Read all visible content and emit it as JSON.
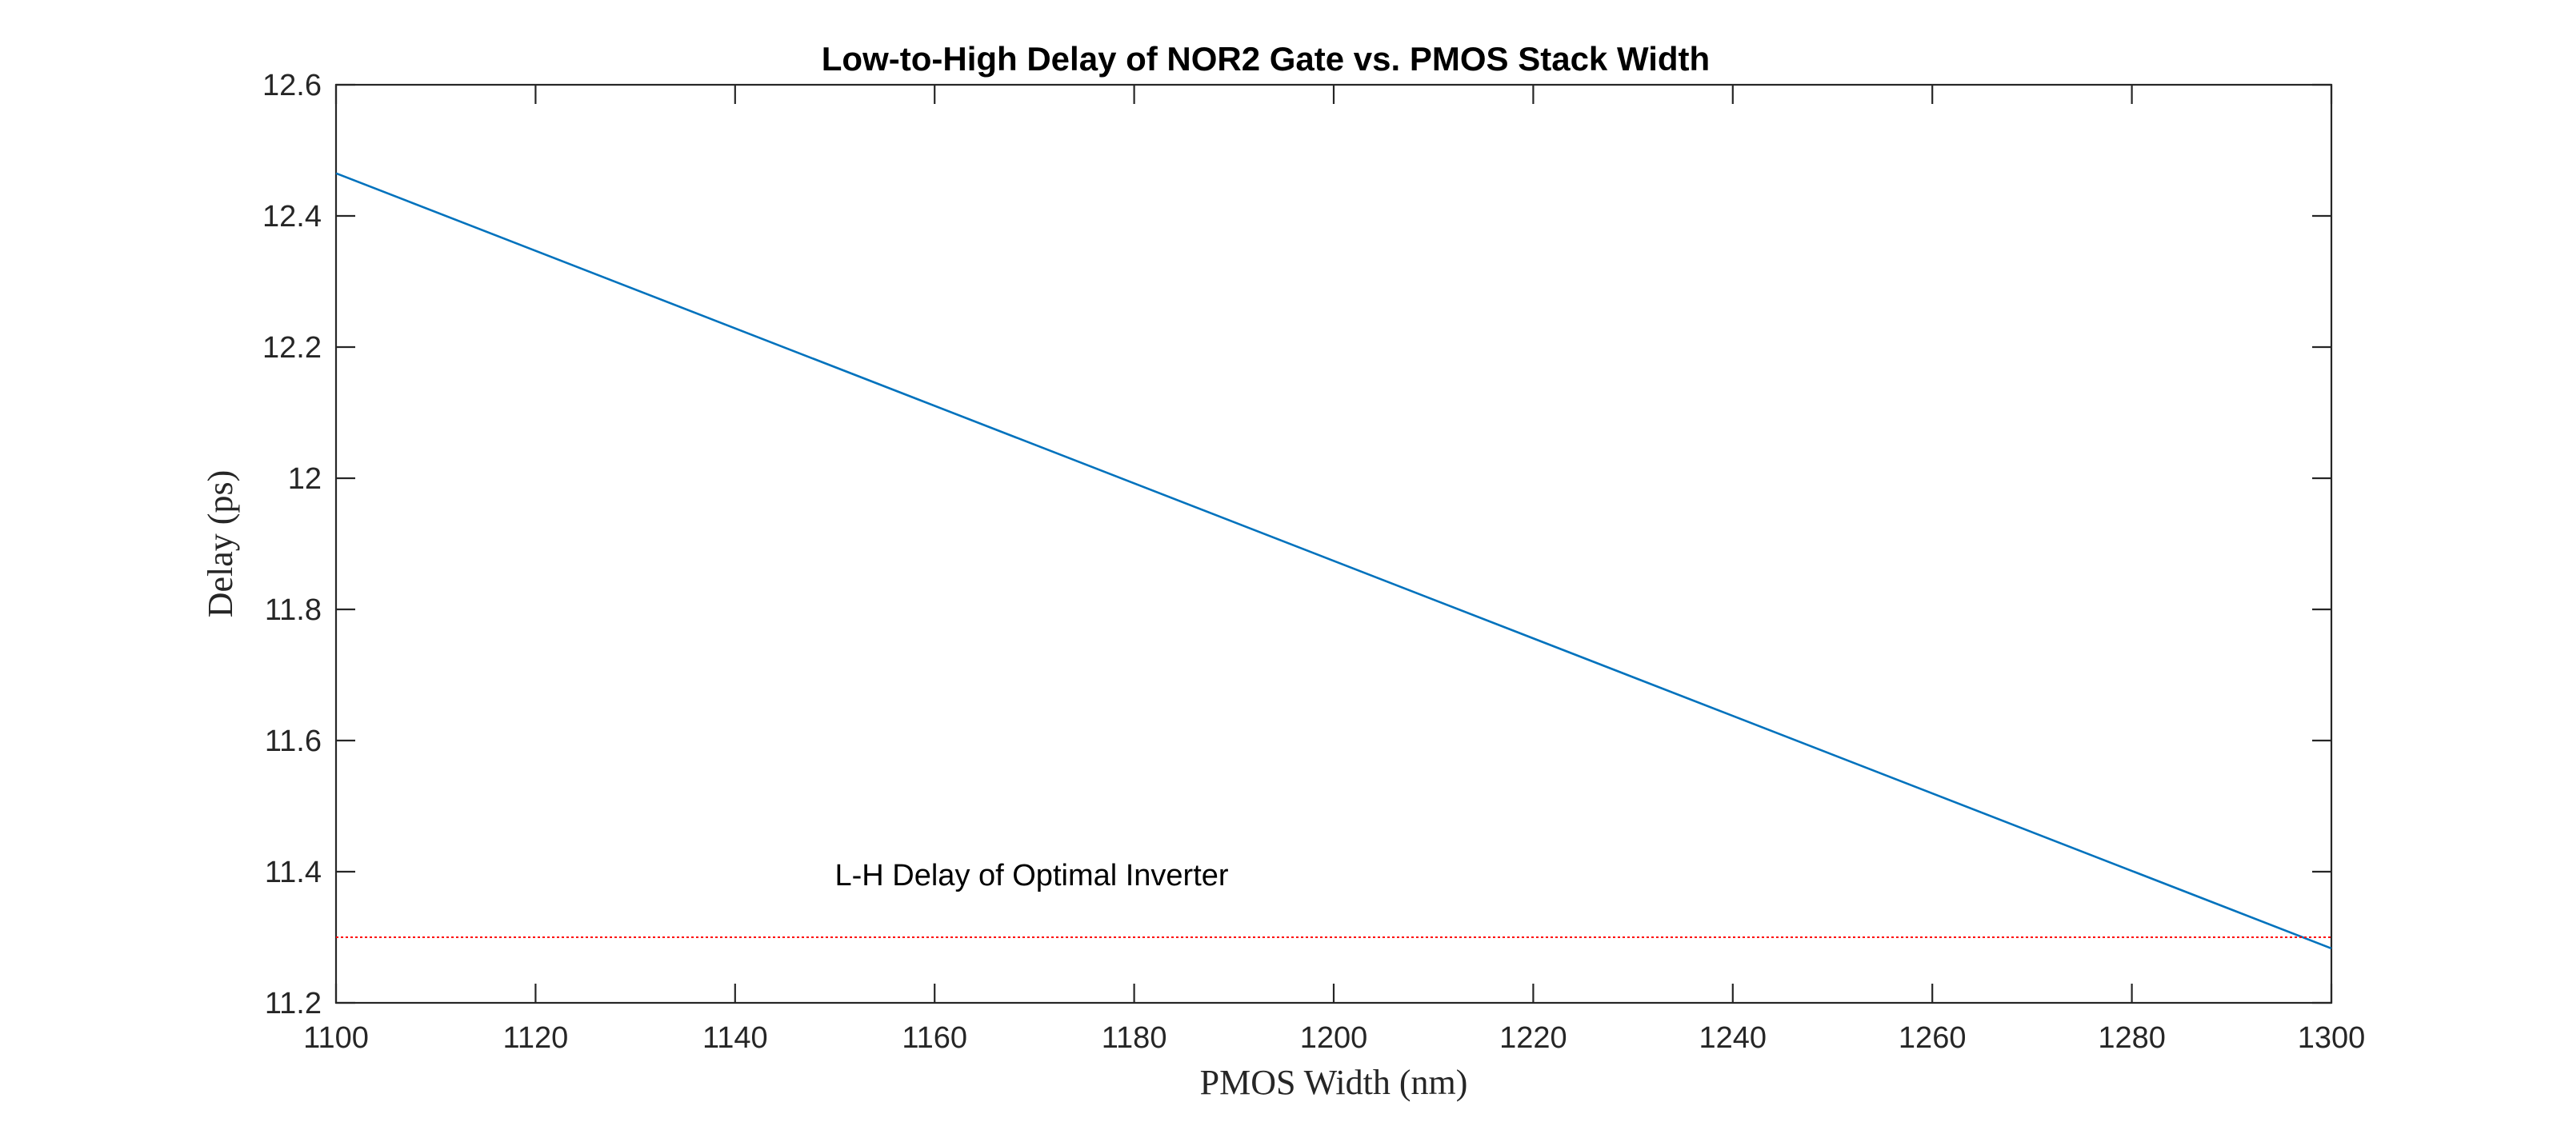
{
  "chart_data": {
    "type": "line",
    "title": "Low-to-High Delay of NOR2 Gate vs. PMOS Stack Width",
    "xlabel": "PMOS Width (nm)",
    "ylabel": "Delay (ps)",
    "xlim": [
      1100,
      1300
    ],
    "ylim": [
      11.2,
      12.6
    ],
    "xticks": [
      1100,
      1120,
      1140,
      1160,
      1180,
      1200,
      1220,
      1240,
      1260,
      1280,
      1300
    ],
    "yticks": [
      11.2,
      11.4,
      11.6,
      11.8,
      12,
      12.2,
      12.4,
      12.6
    ],
    "grid": false,
    "series": [
      {
        "color": "#0072BD",
        "style": "solid",
        "x": [
          1100,
          1300
        ],
        "y": [
          12.465,
          11.283
        ]
      }
    ],
    "reference_lines": [
      {
        "orientation": "horizontal",
        "y": 11.3,
        "color": "#FF0000",
        "style": "dotted"
      }
    ],
    "annotations": [
      {
        "text": "L-H Delay of Optimal Inverter",
        "x": 1150,
        "y": 11.395
      }
    ]
  }
}
